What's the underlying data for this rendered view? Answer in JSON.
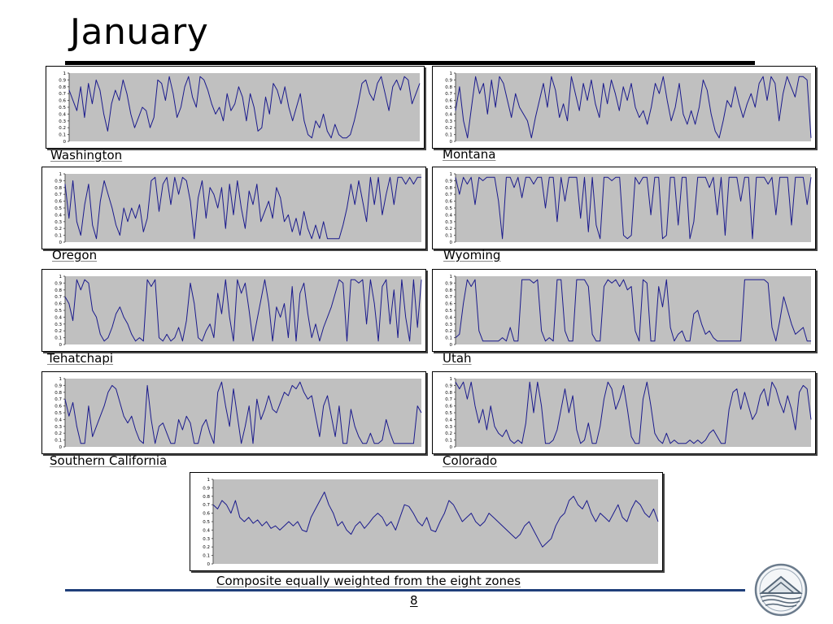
{
  "slide": {
    "title": "January",
    "page_number": "8",
    "colors": {
      "line": "#1a1a8c",
      "plot_bg": "#c0c0c0",
      "rule": "#1f3f7a"
    },
    "logo_icon": "triangle-mountain-logo"
  },
  "chart_data": [
    {
      "type": "line",
      "label": "Washington",
      "ylim": [
        0,
        1
      ],
      "yticks": [
        "1",
        "0.9",
        "0.8",
        "0.7",
        "0.6",
        "0.5",
        "0.4",
        "0.3",
        "0.2",
        "0.1",
        "0"
      ],
      "values": [
        0.75,
        0.6,
        0.45,
        0.8,
        0.35,
        0.85,
        0.55,
        0.9,
        0.75,
        0.4,
        0.15,
        0.55,
        0.75,
        0.6,
        0.9,
        0.7,
        0.4,
        0.2,
        0.35,
        0.5,
        0.45,
        0.2,
        0.35,
        0.9,
        0.85,
        0.6,
        0.95,
        0.7,
        0.35,
        0.5,
        0.8,
        0.95,
        0.65,
        0.5,
        0.95,
        0.9,
        0.75,
        0.55,
        0.4,
        0.5,
        0.3,
        0.7,
        0.45,
        0.55,
        0.8,
        0.65,
        0.3,
        0.7,
        0.5,
        0.15,
        0.2,
        0.65,
        0.4,
        0.85,
        0.75,
        0.55,
        0.8,
        0.5,
        0.3,
        0.5,
        0.7,
        0.3,
        0.1,
        0.05,
        0.3,
        0.2,
        0.4,
        0.15,
        0.05,
        0.25,
        0.1,
        0.05,
        0.05,
        0.1,
        0.3,
        0.55,
        0.85,
        0.9,
        0.7,
        0.6,
        0.85,
        0.95,
        0.7,
        0.45,
        0.8,
        0.9,
        0.75,
        0.95,
        0.9,
        0.55,
        0.7,
        0.85
      ]
    },
    {
      "type": "line",
      "label": "Montana",
      "ylim": [
        0,
        1
      ],
      "yticks": [
        "1",
        "0.9",
        "0.8",
        "0.7",
        "0.6",
        "0.5",
        "0.4",
        "0.3",
        "0.2",
        "0.1",
        "0"
      ],
      "values": [
        0.45,
        0.8,
        0.3,
        0.05,
        0.5,
        0.95,
        0.7,
        0.85,
        0.4,
        0.9,
        0.5,
        0.95,
        0.85,
        0.6,
        0.35,
        0.7,
        0.5,
        0.4,
        0.3,
        0.05,
        0.35,
        0.6,
        0.85,
        0.5,
        0.95,
        0.75,
        0.35,
        0.55,
        0.3,
        0.95,
        0.7,
        0.45,
        0.85,
        0.6,
        0.9,
        0.55,
        0.35,
        0.85,
        0.55,
        0.9,
        0.7,
        0.45,
        0.8,
        0.6,
        0.85,
        0.5,
        0.35,
        0.45,
        0.25,
        0.5,
        0.85,
        0.7,
        0.95,
        0.6,
        0.3,
        0.5,
        0.85,
        0.4,
        0.25,
        0.45,
        0.25,
        0.5,
        0.9,
        0.75,
        0.4,
        0.15,
        0.05,
        0.3,
        0.6,
        0.5,
        0.8,
        0.55,
        0.35,
        0.55,
        0.7,
        0.5,
        0.85,
        0.95,
        0.6,
        0.95,
        0.85,
        0.3,
        0.7,
        0.95,
        0.8,
        0.65,
        0.95,
        0.95,
        0.9,
        0.05
      ]
    },
    {
      "type": "line",
      "label": "Oregon",
      "ylim": [
        0,
        1
      ],
      "yticks": [
        "1",
        "0.9",
        "0.8",
        "0.7",
        "0.6",
        "0.5",
        "0.4",
        "0.3",
        "0.2",
        "0.1",
        "0"
      ],
      "values": [
        0.85,
        0.35,
        0.9,
        0.3,
        0.1,
        0.55,
        0.85,
        0.25,
        0.05,
        0.6,
        0.9,
        0.7,
        0.5,
        0.25,
        0.1,
        0.5,
        0.3,
        0.5,
        0.35,
        0.55,
        0.15,
        0.35,
        0.9,
        0.95,
        0.45,
        0.85,
        0.95,
        0.55,
        0.95,
        0.7,
        0.95,
        0.9,
        0.6,
        0.05,
        0.65,
        0.9,
        0.35,
        0.8,
        0.7,
        0.5,
        0.8,
        0.2,
        0.85,
        0.4,
        0.9,
        0.5,
        0.2,
        0.75,
        0.55,
        0.85,
        0.3,
        0.45,
        0.6,
        0.35,
        0.8,
        0.65,
        0.3,
        0.4,
        0.15,
        0.35,
        0.1,
        0.45,
        0.2,
        0.05,
        0.25,
        0.05,
        0.3,
        0.05,
        0.05,
        0.05,
        0.05,
        0.25,
        0.5,
        0.85,
        0.55,
        0.9,
        0.6,
        0.3,
        0.95,
        0.55,
        0.95,
        0.4,
        0.7,
        0.95,
        0.55,
        0.95,
        0.95,
        0.85,
        0.95,
        0.85,
        0.95,
        0.95
      ]
    },
    {
      "type": "line",
      "label": "Wyoming",
      "ylim": [
        0,
        1
      ],
      "yticks": [
        "1",
        "0.9",
        "0.8",
        "0.7",
        "0.6",
        "0.5",
        "0.4",
        "0.3",
        "0.2",
        "0.1",
        "0"
      ],
      "values": [
        0.95,
        0.7,
        0.95,
        0.85,
        0.95,
        0.55,
        0.95,
        0.9,
        0.95,
        0.95,
        0.95,
        0.6,
        0.05,
        0.95,
        0.95,
        0.8,
        0.95,
        0.65,
        0.95,
        0.95,
        0.85,
        0.95,
        0.95,
        0.5,
        0.95,
        0.95,
        0.3,
        0.95,
        0.6,
        0.95,
        0.95,
        0.95,
        0.35,
        0.95,
        0.15,
        0.95,
        0.25,
        0.05,
        0.95,
        0.95,
        0.9,
        0.95,
        0.95,
        0.1,
        0.05,
        0.1,
        0.95,
        0.85,
        0.95,
        0.95,
        0.4,
        0.95,
        0.95,
        0.05,
        0.1,
        0.95,
        0.95,
        0.25,
        0.95,
        0.95,
        0.05,
        0.3,
        0.95,
        0.95,
        0.95,
        0.8,
        0.95,
        0.4,
        0.95,
        0.1,
        0.95,
        0.95,
        0.95,
        0.6,
        0.95,
        0.95,
        0.05,
        0.95,
        0.95,
        0.95,
        0.85,
        0.95,
        0.4,
        0.95,
        0.95,
        0.95,
        0.25,
        0.95,
        0.95,
        0.95,
        0.55,
        0.95
      ]
    },
    {
      "type": "line",
      "label": "Tehatchapi",
      "ylim": [
        0,
        1
      ],
      "yticks": [
        "1",
        "0.9",
        "0.8",
        "0.7",
        "0.6",
        "0.5",
        "0.4",
        "0.3",
        "0.2",
        "0.1",
        "0"
      ],
      "values": [
        0.7,
        0.6,
        0.35,
        0.95,
        0.8,
        0.95,
        0.9,
        0.5,
        0.4,
        0.15,
        0.05,
        0.1,
        0.25,
        0.45,
        0.55,
        0.4,
        0.3,
        0.15,
        0.05,
        0.1,
        0.05,
        0.95,
        0.85,
        0.95,
        0.1,
        0.05,
        0.15,
        0.05,
        0.1,
        0.25,
        0.05,
        0.35,
        0.9,
        0.6,
        0.1,
        0.05,
        0.2,
        0.3,
        0.1,
        0.75,
        0.45,
        0.95,
        0.4,
        0.05,
        0.95,
        0.75,
        0.9,
        0.5,
        0.05,
        0.35,
        0.65,
        0.95,
        0.6,
        0.05,
        0.55,
        0.4,
        0.6,
        0.1,
        0.85,
        0.05,
        0.75,
        0.9,
        0.45,
        0.1,
        0.3,
        0.05,
        0.25,
        0.4,
        0.55,
        0.75,
        0.95,
        0.9,
        0.05,
        0.95,
        0.95,
        0.9,
        0.95,
        0.3,
        0.95,
        0.6,
        0.05,
        0.85,
        0.95,
        0.3,
        0.8,
        0.1,
        0.95,
        0.4,
        0.05,
        0.95,
        0.25,
        0.95
      ]
    },
    {
      "type": "line",
      "label": "Utah",
      "ylim": [
        0,
        1
      ],
      "yticks": [
        "1",
        "0.9",
        "0.8",
        "0.7",
        "0.6",
        "0.5",
        "0.4",
        "0.3",
        "0.2",
        "0.1",
        "0"
      ],
      "values": [
        0.1,
        0.15,
        0.6,
        0.95,
        0.85,
        0.95,
        0.2,
        0.05,
        0.05,
        0.05,
        0.05,
        0.05,
        0.1,
        0.05,
        0.25,
        0.05,
        0.05,
        0.95,
        0.95,
        0.95,
        0.9,
        0.95,
        0.2,
        0.05,
        0.1,
        0.05,
        0.95,
        0.95,
        0.2,
        0.05,
        0.05,
        0.95,
        0.95,
        0.95,
        0.85,
        0.15,
        0.05,
        0.05,
        0.85,
        0.95,
        0.9,
        0.95,
        0.85,
        0.95,
        0.8,
        0.85,
        0.2,
        0.05,
        0.95,
        0.9,
        0.05,
        0.05,
        0.85,
        0.55,
        0.95,
        0.25,
        0.05,
        0.15,
        0.2,
        0.05,
        0.05,
        0.45,
        0.5,
        0.3,
        0.15,
        0.2,
        0.1,
        0.05,
        0.05,
        0.05,
        0.05,
        0.05,
        0.05,
        0.05,
        0.95,
        0.95,
        0.95,
        0.95,
        0.95,
        0.95,
        0.9,
        0.25,
        0.05,
        0.35,
        0.7,
        0.5,
        0.3,
        0.15,
        0.2,
        0.25,
        0.05,
        0.05
      ]
    },
    {
      "type": "line",
      "label": "Southern California",
      "ylim": [
        0,
        1
      ],
      "yticks": [
        "1",
        "0.9",
        "0.8",
        "0.7",
        "0.6",
        "0.5",
        "0.4",
        "0.3",
        "0.2",
        "0.1",
        "0"
      ],
      "values": [
        0.7,
        0.45,
        0.65,
        0.3,
        0.05,
        0.05,
        0.6,
        0.15,
        0.3,
        0.45,
        0.6,
        0.8,
        0.9,
        0.85,
        0.65,
        0.45,
        0.35,
        0.45,
        0.25,
        0.1,
        0.05,
        0.9,
        0.4,
        0.05,
        0.3,
        0.35,
        0.2,
        0.05,
        0.05,
        0.4,
        0.25,
        0.45,
        0.35,
        0.05,
        0.05,
        0.3,
        0.4,
        0.2,
        0.05,
        0.8,
        0.95,
        0.6,
        0.3,
        0.85,
        0.45,
        0.05,
        0.3,
        0.6,
        0.05,
        0.7,
        0.4,
        0.55,
        0.75,
        0.55,
        0.5,
        0.65,
        0.8,
        0.75,
        0.9,
        0.85,
        0.95,
        0.8,
        0.7,
        0.75,
        0.45,
        0.15,
        0.6,
        0.75,
        0.45,
        0.15,
        0.6,
        0.05,
        0.05,
        0.55,
        0.3,
        0.15,
        0.05,
        0.05,
        0.2,
        0.05,
        0.05,
        0.1,
        0.4,
        0.2,
        0.05,
        0.05,
        0.05,
        0.05,
        0.05,
        0.05,
        0.6,
        0.5
      ]
    },
    {
      "type": "line",
      "label": "Colorado",
      "ylim": [
        0,
        1
      ],
      "yticks": [
        "1",
        "0.9",
        "0.8",
        "0.7",
        "0.6",
        "0.5",
        "0.4",
        "0.3",
        "0.2",
        "0.1",
        "0"
      ],
      "values": [
        0.95,
        0.85,
        0.95,
        0.7,
        0.95,
        0.6,
        0.35,
        0.55,
        0.25,
        0.6,
        0.3,
        0.2,
        0.15,
        0.25,
        0.1,
        0.05,
        0.1,
        0.05,
        0.35,
        0.95,
        0.5,
        0.95,
        0.6,
        0.05,
        0.05,
        0.1,
        0.25,
        0.55,
        0.85,
        0.5,
        0.75,
        0.25,
        0.05,
        0.1,
        0.35,
        0.05,
        0.05,
        0.3,
        0.7,
        0.95,
        0.85,
        0.55,
        0.7,
        0.9,
        0.55,
        0.15,
        0.05,
        0.05,
        0.7,
        0.95,
        0.6,
        0.2,
        0.1,
        0.05,
        0.2,
        0.05,
        0.1,
        0.05,
        0.05,
        0.05,
        0.1,
        0.05,
        0.1,
        0.05,
        0.1,
        0.2,
        0.25,
        0.15,
        0.05,
        0.05,
        0.55,
        0.8,
        0.85,
        0.55,
        0.8,
        0.6,
        0.4,
        0.5,
        0.75,
        0.85,
        0.6,
        0.95,
        0.85,
        0.65,
        0.5,
        0.75,
        0.55,
        0.25,
        0.8,
        0.9,
        0.85,
        0.4
      ]
    },
    {
      "type": "line",
      "label": "Composite equally weighted from the eight zones",
      "ylim": [
        0,
        1
      ],
      "yticks": [
        "1",
        "0.9",
        "0.8",
        "0.7",
        "0.6",
        "0.5",
        "0.4",
        "0.3",
        "0.2",
        "0.1",
        "0"
      ],
      "values": [
        0.7,
        0.65,
        0.75,
        0.7,
        0.6,
        0.75,
        0.55,
        0.5,
        0.55,
        0.48,
        0.52,
        0.45,
        0.5,
        0.42,
        0.45,
        0.4,
        0.45,
        0.5,
        0.45,
        0.5,
        0.4,
        0.38,
        0.55,
        0.65,
        0.75,
        0.85,
        0.7,
        0.6,
        0.45,
        0.5,
        0.4,
        0.35,
        0.45,
        0.5,
        0.42,
        0.48,
        0.55,
        0.6,
        0.55,
        0.45,
        0.5,
        0.4,
        0.55,
        0.7,
        0.68,
        0.6,
        0.5,
        0.45,
        0.55,
        0.4,
        0.38,
        0.5,
        0.6,
        0.75,
        0.7,
        0.6,
        0.5,
        0.55,
        0.6,
        0.5,
        0.45,
        0.5,
        0.6,
        0.55,
        0.5,
        0.45,
        0.4,
        0.35,
        0.3,
        0.35,
        0.45,
        0.5,
        0.4,
        0.3,
        0.2,
        0.25,
        0.3,
        0.45,
        0.55,
        0.6,
        0.75,
        0.8,
        0.7,
        0.65,
        0.75,
        0.6,
        0.5,
        0.6,
        0.55,
        0.5,
        0.6,
        0.7,
        0.55,
        0.5,
        0.65,
        0.75,
        0.7,
        0.6,
        0.55,
        0.65,
        0.5
      ]
    }
  ]
}
